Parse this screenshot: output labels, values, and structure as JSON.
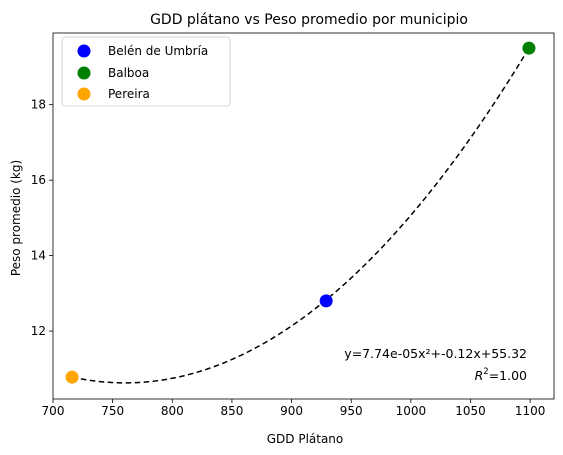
{
  "chart_data": {
    "type": "scatter",
    "title": "GDD plátano vs Peso promedio por municipio",
    "xlabel": "GDD Plátano",
    "ylabel": "Peso promedio (kg)",
    "xlim": [
      700,
      1120
    ],
    "ylim": [
      10.2,
      19.9
    ],
    "xticks": [
      700,
      750,
      800,
      850,
      900,
      950,
      1000,
      1050,
      1100
    ],
    "yticks": [
      12,
      14,
      16,
      18
    ],
    "grid": false,
    "legend_position": "top-left",
    "series": [
      {
        "name": "Belén de Umbría",
        "color": "#0000ff",
        "points": [
          [
            929,
            12.8
          ]
        ]
      },
      {
        "name": "Balboa",
        "color": "#008000",
        "points": [
          [
            1099,
            19.5
          ]
        ]
      },
      {
        "name": "Pereira",
        "color": "#ffa500",
        "points": [
          [
            716,
            10.78
          ]
        ]
      }
    ],
    "fit": {
      "style": "dashed",
      "color": "#000000",
      "x_range": [
        716,
        1099
      ],
      "coefficients": [
        7.74e-05,
        -0.12,
        55.32
      ],
      "equation_text": "y=7.74e-05x²+-0.12x+55.32",
      "r2_text": "=1.00",
      "r2_label": "R",
      "r2_sup": "2"
    }
  }
}
